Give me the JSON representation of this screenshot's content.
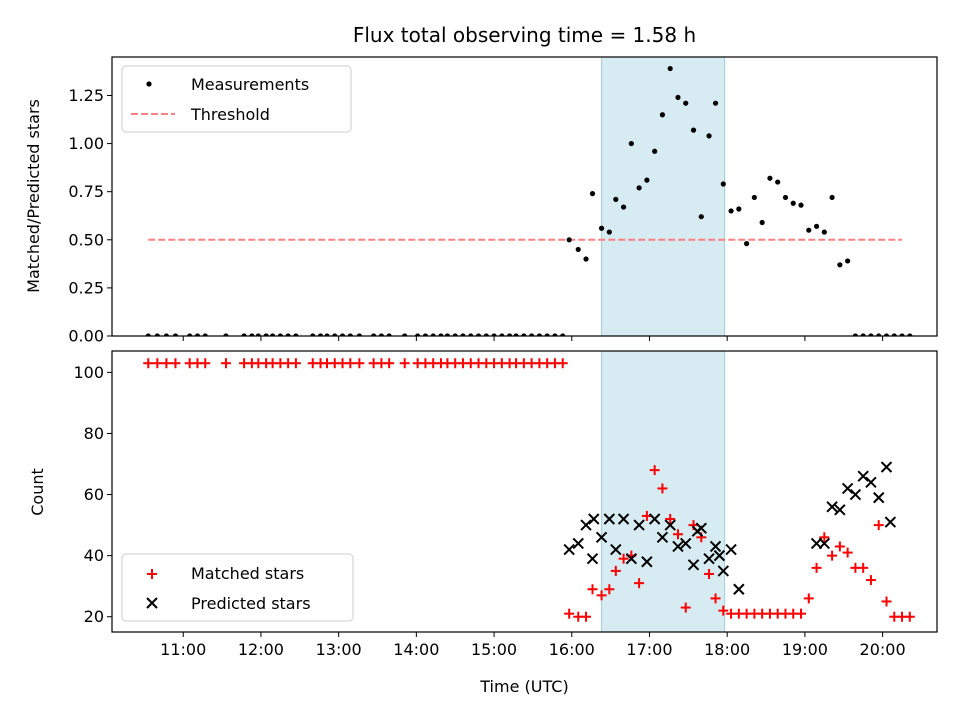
{
  "chart_data": [
    {
      "type": "scatter",
      "title": "Flux total observing time = 1.58 h",
      "xlabel": "",
      "ylabel": "Matched/Predicted stars",
      "xlim": [
        "10:05",
        "20:42"
      ],
      "ylim": [
        0,
        1.45
      ],
      "yticks": [
        "0.00",
        "0.25",
        "0.50",
        "0.75",
        "1.00",
        "1.25"
      ],
      "legend_position": "top-left",
      "shaded_region": [
        "16:23",
        "17:58"
      ],
      "series": [
        {
          "name": "Measurements",
          "kind": "points",
          "color": "#000000",
          "x": [
            "10:33",
            "10:40",
            "10:47",
            "10:54",
            "11:05",
            "11:11",
            "11:17",
            "11:33",
            "11:47",
            "11:53",
            "11:58",
            "12:04",
            "12:09",
            "12:15",
            "12:21",
            "12:27",
            "12:40",
            "12:46",
            "12:51",
            "12:57",
            "13:03",
            "13:09",
            "13:16",
            "13:27",
            "13:33",
            "13:39",
            "13:51",
            "14:01",
            "14:07",
            "14:13",
            "14:19",
            "14:24",
            "14:30",
            "14:36",
            "14:42",
            "14:48",
            "14:54",
            "15:00",
            "15:06",
            "15:12",
            "15:17",
            "15:23",
            "15:29",
            "15:35",
            "15:41",
            "15:47",
            "15:53",
            "15:58",
            "16:05",
            "16:11",
            "16:16",
            "16:23",
            "16:29",
            "16:34",
            "16:40",
            "16:46",
            "16:52",
            "16:58",
            "17:04",
            "17:10",
            "17:16",
            "17:22",
            "17:28",
            "17:34",
            "17:40",
            "17:46",
            "17:51",
            "17:57",
            "18:03",
            "18:09",
            "18:15",
            "18:21",
            "18:27",
            "18:33",
            "18:39",
            "18:45",
            "18:51",
            "18:57",
            "19:03",
            "19:09",
            "19:15",
            "19:21",
            "19:27",
            "19:33",
            "19:39",
            "19:45",
            "19:51",
            "19:57",
            "20:03",
            "20:09",
            "20:15",
            "20:21"
          ],
          "y": [
            0,
            0,
            0,
            0,
            0,
            0,
            0,
            0,
            0,
            0,
            0,
            0,
            0,
            0,
            0,
            0,
            0,
            0,
            0,
            0,
            0,
            0,
            0,
            0,
            0,
            0,
            0,
            0,
            0,
            0,
            0,
            0,
            0,
            0,
            0,
            0,
            0,
            0,
            0,
            0,
            0,
            0,
            0,
            0,
            0,
            0,
            0,
            0.5,
            0.45,
            0.4,
            0.74,
            0.56,
            0.54,
            0.71,
            0.67,
            1.0,
            0.77,
            0.81,
            0.96,
            1.15,
            1.39,
            1.24,
            1.21,
            1.07,
            0.62,
            1.04,
            1.21,
            0.79,
            0.65,
            0.66,
            0.48,
            0.72,
            0.59,
            0.82,
            0.8,
            0.72,
            0.69,
            0.68,
            0.55,
            0.57,
            0.54,
            0.72,
            0.37,
            0.39,
            0,
            0,
            0,
            0,
            0,
            0,
            0,
            0
          ]
        },
        {
          "name": "Threshold",
          "kind": "dashed-line",
          "color": "#ff8080",
          "x": [
            "10:33",
            "20:15"
          ],
          "y": [
            0.5,
            0.5
          ]
        }
      ]
    },
    {
      "type": "scatter",
      "title": "",
      "xlabel": "Time (UTC)",
      "ylabel": "Count",
      "xlim": [
        "10:05",
        "20:42"
      ],
      "ylim": [
        15,
        107
      ],
      "yticks": [
        "20",
        "40",
        "60",
        "80",
        "100"
      ],
      "xticks": [
        "11:00",
        "12:00",
        "13:00",
        "14:00",
        "15:00",
        "16:00",
        "17:00",
        "18:00",
        "19:00",
        "20:00"
      ],
      "legend_position": "bottom-left",
      "shaded_region": [
        "16:23",
        "17:58"
      ],
      "series": [
        {
          "name": "Matched stars",
          "kind": "plus",
          "color": "#ff0000",
          "x": [
            "10:33",
            "10:40",
            "10:47",
            "10:54",
            "11:05",
            "11:11",
            "11:17",
            "11:33",
            "11:47",
            "11:53",
            "11:58",
            "12:04",
            "12:09",
            "12:15",
            "12:21",
            "12:27",
            "12:40",
            "12:46",
            "12:51",
            "12:57",
            "13:03",
            "13:09",
            "13:16",
            "13:27",
            "13:33",
            "13:39",
            "13:51",
            "14:01",
            "14:07",
            "14:13",
            "14:19",
            "14:24",
            "14:30",
            "14:36",
            "14:42",
            "14:48",
            "14:54",
            "15:00",
            "15:06",
            "15:12",
            "15:17",
            "15:23",
            "15:29",
            "15:35",
            "15:41",
            "15:47",
            "15:53",
            "15:58",
            "16:05",
            "16:11",
            "16:16",
            "16:23",
            "16:29",
            "16:34",
            "16:40",
            "16:46",
            "16:52",
            "16:58",
            "17:04",
            "17:10",
            "17:16",
            "17:22",
            "17:28",
            "17:34",
            "17:40",
            "17:46",
            "17:51",
            "17:57",
            "18:03",
            "18:09",
            "18:15",
            "18:21",
            "18:27",
            "18:33",
            "18:39",
            "18:45",
            "18:51",
            "18:57",
            "19:03",
            "19:09",
            "19:15",
            "19:21",
            "19:27",
            "19:33",
            "19:39",
            "19:45",
            "19:51",
            "19:57",
            "20:03",
            "20:09",
            "20:15",
            "20:21"
          ],
          "y": [
            103,
            103,
            103,
            103,
            103,
            103,
            103,
            103,
            103,
            103,
            103,
            103,
            103,
            103,
            103,
            103,
            103,
            103,
            103,
            103,
            103,
            103,
            103,
            103,
            103,
            103,
            103,
            103,
            103,
            103,
            103,
            103,
            103,
            103,
            103,
            103,
            103,
            103,
            103,
            103,
            103,
            103,
            103,
            103,
            103,
            103,
            103,
            21,
            20,
            20,
            29,
            27,
            29,
            35,
            39,
            40,
            31,
            53,
            68,
            62,
            52,
            47,
            23,
            50,
            46,
            34,
            26,
            22,
            21,
            21,
            21,
            21,
            21,
            21,
            21,
            21,
            21,
            21,
            26,
            36,
            46,
            40,
            43,
            41,
            36,
            36,
            32,
            50,
            25,
            20,
            20,
            20
          ]
        },
        {
          "name": "Predicted stars",
          "kind": "x",
          "color": "#000000",
          "x": [
            "15:58",
            "16:05",
            "16:11",
            "16:16",
            "16:23",
            "16:29",
            "16:34",
            "16:40",
            "16:46",
            "16:52",
            "16:58",
            "17:04",
            "17:10",
            "17:16",
            "17:22",
            "17:28",
            "17:34",
            "17:40",
            "17:46",
            "17:51",
            "17:57",
            "18:03",
            "18:09",
            "19:09",
            "19:15",
            "19:21",
            "19:27",
            "19:33",
            "19:39",
            "19:45",
            "19:51",
            "19:57",
            "20:03"
          ],
          "y": [
            42,
            44,
            50,
            39,
            46,
            52,
            42,
            52,
            39,
            50,
            38,
            52,
            46,
            50,
            43,
            44,
            37,
            49,
            39,
            43,
            35,
            42,
            29,
            44,
            44,
            56,
            55,
            62,
            60,
            66,
            64,
            59,
            69
          ]
        }
      ]
    },
    {
      "type": "scatter",
      "overlay_extra": true,
      "series": [
        {
          "name": "",
          "kind": "x",
          "color": "#000000",
          "x": [
            "16:17",
            "17:37",
            "17:54",
            "20:06"
          ],
          "y": [
            52,
            48,
            40,
            51
          ]
        }
      ]
    }
  ]
}
